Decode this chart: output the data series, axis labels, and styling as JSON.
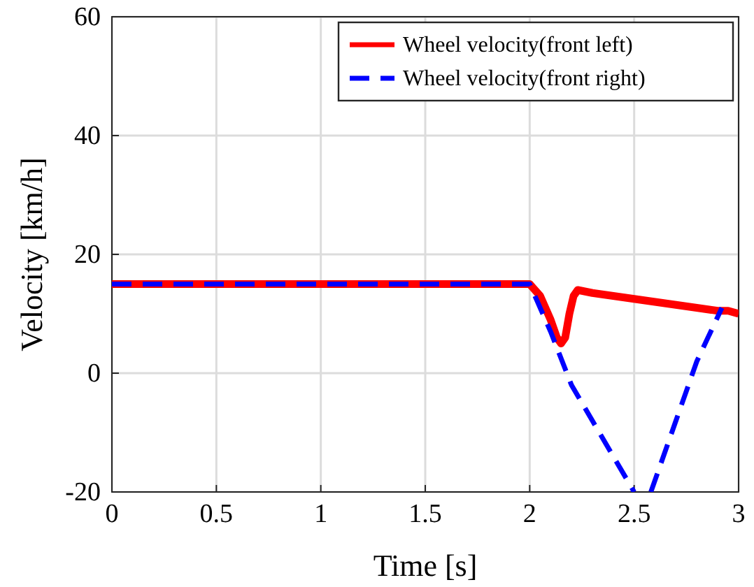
{
  "chart_data": {
    "type": "line",
    "xlabel": "Time [s]",
    "ylabel": "Velocity [km/h]",
    "xlim": [
      0,
      3
    ],
    "ylim": [
      -20,
      60
    ],
    "xticks": [
      0,
      0.5,
      1,
      1.5,
      2,
      2.5,
      3
    ],
    "yticks": [
      -20,
      0,
      20,
      40,
      60
    ],
    "grid": true,
    "legend": "top right",
    "marker": "none",
    "series": [
      {
        "name": "Wheel velocity(front left)",
        "color": "#ff0000",
        "line_style": "solid",
        "x": [
          0,
          0.25,
          0.5,
          0.75,
          1,
          1.25,
          1.5,
          1.75,
          2,
          2.05,
          2.1,
          2.13,
          2.15,
          2.17,
          2.19,
          2.21,
          2.23,
          2.3,
          2.4,
          2.5,
          2.6,
          2.7,
          2.8,
          2.9,
          2.95,
          3
        ],
        "values": [
          15,
          15,
          15,
          15,
          15,
          15,
          15,
          15,
          15,
          13,
          9,
          6,
          5,
          6,
          10,
          13,
          14,
          13.5,
          13,
          12.5,
          12,
          11.5,
          11,
          10.5,
          10.5,
          10
        ]
      },
      {
        "name": "Wheel velocity(front right)",
        "color": "#0000ff",
        "line_style": "dashed",
        "x": [
          0,
          0.25,
          0.5,
          0.75,
          1,
          1.25,
          1.5,
          1.75,
          2,
          2.1,
          2.2,
          2.3,
          2.4,
          2.5
        ],
        "values": [
          15,
          15,
          15,
          15,
          15,
          15,
          15,
          15,
          15,
          7,
          -2,
          -8,
          -14,
          -20
        ]
      },
      {
        "color": "#0000ff",
        "line_style": "dashed",
        "x": [
          2.58,
          2.7,
          2.8,
          2.92
        ],
        "values": [
          -20,
          -8,
          2,
          11
        ]
      }
    ]
  }
}
